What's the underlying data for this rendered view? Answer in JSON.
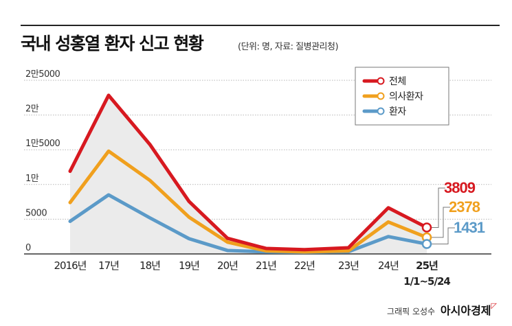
{
  "header": {
    "title": "국내 성홍열 환자 신고 현황",
    "subtitle": "(단위: 명, 자료: 질병관리청)"
  },
  "credit": {
    "prefix": "그래픽 오성수",
    "brand": "아시아경제"
  },
  "colors": {
    "total": "#d71920",
    "doctor": "#f0a01e",
    "patient": "#5b9ac8",
    "area": "#ebebeb"
  },
  "chart_data": {
    "type": "line",
    "title": "국내 성홍열 환자 신고 현황",
    "categories": [
      "2016년",
      "17년",
      "18년",
      "19년",
      "20년",
      "21년",
      "22년",
      "23년",
      "24년",
      "25년"
    ],
    "last_category_note": "1/1~5/24",
    "yticks": [
      "0",
      "5000",
      "1만",
      "1만5000",
      "2만",
      "2만5000"
    ],
    "ylim": [
      0,
      25000
    ],
    "grid": true,
    "legend_position": "top-right",
    "series": [
      {
        "name": "전체",
        "color": "#d71920",
        "values": [
          11911,
          22838,
          15777,
          7562,
          2250,
          794,
          612,
          892,
          6645,
          3809
        ]
      },
      {
        "name": "의사환자",
        "color": "#f0a01e",
        "values": [
          7400,
          14800,
          10600,
          5300,
          1700,
          450,
          300,
          450,
          4600,
          2378
        ]
      },
      {
        "name": "환자",
        "color": "#5b9ac8",
        "values": [
          4700,
          8500,
          5200,
          2200,
          500,
          300,
          250,
          330,
          2500,
          1431
        ]
      }
    ],
    "end_labels": [
      "3809",
      "2378",
      "1431"
    ]
  }
}
